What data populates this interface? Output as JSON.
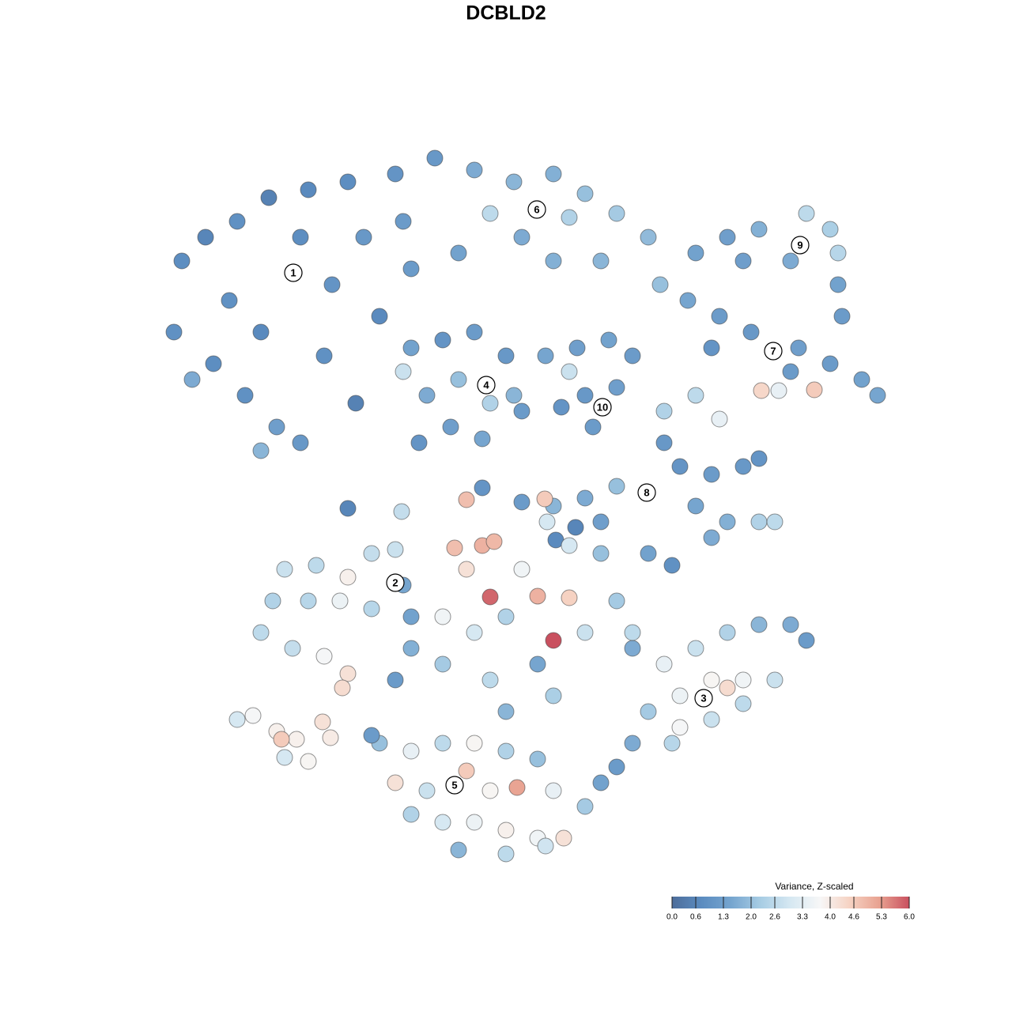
{
  "chart_data": {
    "type": "scatter",
    "title": "DCBLD2",
    "xlim": [
      0,
      128
    ],
    "ylim": [
      0,
      128
    ],
    "x": [
      23,
      26,
      30,
      34,
      39,
      44,
      50,
      55,
      29,
      33,
      38,
      42,
      46,
      51,
      22,
      27,
      31,
      35,
      38,
      48,
      41,
      52,
      24.3,
      33,
      45,
      60,
      65,
      70,
      74,
      62,
      72,
      78,
      82,
      66,
      58,
      70,
      76,
      83.5,
      88,
      92,
      96,
      102,
      105,
      106,
      100,
      106,
      106.5,
      94,
      87,
      91,
      95,
      101,
      105,
      109,
      111,
      103,
      96.3,
      98.5,
      90,
      100,
      52,
      56,
      60,
      64,
      51,
      54,
      58,
      62,
      65,
      53,
      57,
      61,
      66,
      69,
      73,
      77,
      80,
      74,
      78,
      75,
      72,
      71,
      84,
      88,
      91,
      84,
      86,
      90,
      94,
      96,
      78,
      74,
      70,
      76,
      88,
      92,
      96,
      98,
      90,
      44,
      50.8,
      70.3,
      72.8,
      69.2,
      36,
      40,
      44,
      47,
      50,
      34.5,
      39,
      43,
      47,
      33,
      37,
      41,
      44,
      43.3,
      52,
      51,
      30,
      32,
      35,
      37.5,
      35.6,
      40.8,
      39,
      36,
      41.8,
      57.5,
      61,
      62.5,
      59,
      62,
      70,
      68,
      66,
      72,
      56,
      60,
      64,
      56,
      62,
      68,
      74,
      78,
      82,
      85,
      76,
      72,
      80,
      70,
      52,
      50,
      61,
      66,
      68.9,
      59,
      64,
      80,
      84,
      88,
      92,
      96,
      100,
      102,
      86,
      90,
      94,
      92,
      98,
      82,
      86,
      90,
      94,
      80,
      78,
      85,
      48,
      52,
      56,
      60,
      64,
      68,
      50,
      54,
      59,
      62,
      65.4,
      70,
      74,
      52,
      56,
      60,
      64,
      68,
      71.3,
      58,
      64,
      69,
      76,
      47
    ],
    "y": [
      95,
      98,
      100,
      103,
      104,
      105,
      106,
      108,
      90,
      86,
      98,
      92,
      98,
      100,
      86,
      82,
      78,
      74,
      72,
      88,
      83,
      94,
      80,
      71,
      77,
      106.5,
      105,
      106,
      103.5,
      101,
      100.5,
      101,
      98,
      98,
      96,
      95,
      95,
      92,
      96,
      98,
      99,
      101,
      99,
      96,
      95,
      92,
      88,
      95,
      90,
      88,
      86,
      84,
      82,
      80,
      78,
      78.7,
      78.6,
      78.6,
      84,
      81,
      84,
      85,
      86,
      83,
      81,
      78,
      80,
      77,
      78,
      72,
      74,
      72.5,
      76,
      83,
      84,
      85,
      83,
      78,
      79,
      74,
      81,
      76.5,
      76,
      78,
      75,
      72,
      69,
      68,
      69,
      70,
      66.5,
      65,
      64,
      62,
      64,
      62,
      62,
      62,
      60,
      63.7,
      63.3,
      59.7,
      61.3,
      62,
      56,
      56.5,
      55,
      58,
      58.5,
      52,
      52,
      52,
      51,
      48,
      46,
      45,
      42.8,
      41,
      50,
      54,
      37,
      37.5,
      35.5,
      34.5,
      34.5,
      36.7,
      31.7,
      32.2,
      34.7,
      58.7,
      59,
      59.5,
      56,
      52.5,
      47,
      52.6,
      56,
      52.4,
      50,
      48,
      50,
      44,
      42,
      44,
      48,
      52,
      58,
      56.5,
      58,
      59,
      46,
      40,
      46,
      42,
      66.3,
      64.5,
      64.9,
      64.8,
      38,
      48,
      44,
      46,
      48,
      49,
      49,
      47,
      40,
      42,
      42,
      41,
      42,
      38,
      36,
      37,
      39,
      34,
      31,
      34,
      34,
      33,
      34,
      34,
      33,
      32,
      29,
      28,
      30.5,
      28,
      28.4,
      28,
      26,
      25,
      24,
      24,
      23,
      22,
      22,
      20.5,
      20,
      21,
      29,
      35
    ],
    "values": [
      0.8,
      0.6,
      0.9,
      0.5,
      0.7,
      0.8,
      1.0,
      1.1,
      0.9,
      0.7,
      0.8,
      1.0,
      1.1,
      1.2,
      0.9,
      0.8,
      0.9,
      1.3,
      1.1,
      0.7,
      0.9,
      1.2,
      1.6,
      1.8,
      0.5,
      1.6,
      1.8,
      1.7,
      2.0,
      2.6,
      2.4,
      2.2,
      1.9,
      1.6,
      1.4,
      1.7,
      1.8,
      2.0,
      1.4,
      1.3,
      1.7,
      2.6,
      2.3,
      2.5,
      1.6,
      1.4,
      1.2,
      1.3,
      1.5,
      1.2,
      1.1,
      1.3,
      1.2,
      1.4,
      1.5,
      4.6,
      4.4,
      3.4,
      1.0,
      1.2,
      1.4,
      1.0,
      1.2,
      1.1,
      2.8,
      1.6,
      2.0,
      2.4,
      1.8,
      1.0,
      1.3,
      1.5,
      1.2,
      1.5,
      1.3,
      1.4,
      1.2,
      1.1,
      1.3,
      1.2,
      2.8,
      1.0,
      2.4,
      2.6,
      3.4,
      1.1,
      1.0,
      1.2,
      1.1,
      1.0,
      2.0,
      1.6,
      1.8,
      1.3,
      1.5,
      1.7,
      2.4,
      2.6,
      1.6,
      0.6,
      2.7,
      0.7,
      0.6,
      3.0,
      2.8,
      2.6,
      3.9,
      2.7,
      2.8,
      2.4,
      2.5,
      3.5,
      2.5,
      2.6,
      2.7,
      3.7,
      4.2,
      4.3,
      1.4,
      1.5,
      3.0,
      3.7,
      3.9,
      3.9,
      4.6,
      4.2,
      3.8,
      3.0,
      4.0,
      4.8,
      5.0,
      4.9,
      4.2,
      5.8,
      6.0,
      5.0,
      3.6,
      4.5,
      3.6,
      3.0,
      2.4,
      2.2,
      2.6,
      1.5,
      2.8,
      2.2,
      1.4,
      0.9,
      2.0,
      3.0,
      1.6,
      2.3,
      1.7,
      1.2,
      1.0,
      1.2,
      4.6,
      4.8,
      1.8,
      2.6,
      3.4,
      2.8,
      2.4,
      1.8,
      1.6,
      1.2,
      3.5,
      3.8,
      3.6,
      4.3,
      2.8,
      2.2,
      3.7,
      2.8,
      2.6,
      1.6,
      1.2,
      2.5,
      2.0,
      3.4,
      2.6,
      3.8,
      2.4,
      2.0,
      4.2,
      2.8,
      4.6,
      3.8,
      5.2,
      3.4,
      2.2,
      2.4,
      3.0,
      3.5,
      3.9,
      3.6,
      4.2,
      1.8,
      2.6,
      2.9,
      1.4,
      1.2
    ],
    "clusters": [
      {
        "label": "1",
        "x": 37.1,
        "y": 93.5
      },
      {
        "label": "2",
        "x": 50,
        "y": 54.3
      },
      {
        "label": "3",
        "x": 89,
        "y": 39.7
      },
      {
        "label": "4",
        "x": 61.5,
        "y": 79.3
      },
      {
        "label": "5",
        "x": 57.5,
        "y": 28.7
      },
      {
        "label": "6",
        "x": 67.9,
        "y": 101.5
      },
      {
        "label": "7",
        "x": 97.8,
        "y": 83.6
      },
      {
        "label": "8",
        "x": 81.8,
        "y": 65.7
      },
      {
        "label": "9",
        "x": 101.2,
        "y": 97
      },
      {
        "label": "10",
        "x": 76.2,
        "y": 76.5
      }
    ],
    "colorscale": [
      "#4d6d9b",
      "#5b8cc0",
      "#76a5cf",
      "#a8cde4",
      "#d6e8f2",
      "#f7f7f7",
      "#f6d2c2",
      "#e8a190",
      "#c9505f"
    ],
    "colorbar": {
      "title": "Variance, Z-scaled",
      "clim": [
        0,
        6
      ],
      "ticks": [
        {
          "value": 0,
          "label": "0.0"
        },
        0.6,
        1.3,
        {
          "value": 2,
          "label": "2.0"
        },
        2.6,
        3.3,
        {
          "value": 4,
          "label": "4.0"
        },
        4.6,
        5.3,
        {
          "value": 6,
          "label": "6.0"
        }
      ]
    }
  }
}
